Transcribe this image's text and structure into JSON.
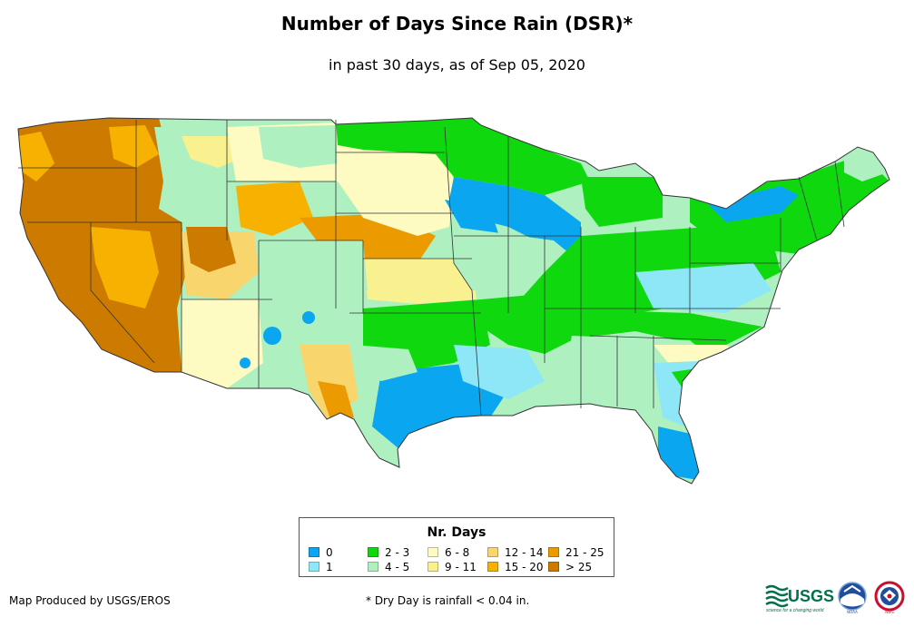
{
  "title": "Number of Days Since Rain (DSR)*",
  "subtitle": "in past 30 days, as of Sep 05, 2020",
  "legend": {
    "title": "Nr. Days",
    "items": [
      {
        "label": "0",
        "color": "#0aa6ef"
      },
      {
        "label": "1",
        "color": "#8de7f6"
      },
      {
        "label": "2 - 3",
        "color": "#0fd80f"
      },
      {
        "label": "4 - 5",
        "color": "#aef0c0"
      },
      {
        "label": "6 - 8",
        "color": "#fdfbc2"
      },
      {
        "label": "9 - 11",
        "color": "#f9f08f"
      },
      {
        "label": "12 - 14",
        "color": "#f8d56d"
      },
      {
        "label": "15 - 20",
        "color": "#f7b100"
      },
      {
        "label": "21 - 25",
        "color": "#eb9a00"
      },
      {
        "label": "> 25",
        "color": "#cc7a00"
      }
    ]
  },
  "credit": "Map Produced by USGS/EROS",
  "footnote": "* Dry Day is rainfall < 0.04 in.",
  "logos": {
    "usgs": "USGS",
    "usgs_tagline": "science for a changing world",
    "noaa": "NOAA",
    "nws": "NWS"
  }
}
